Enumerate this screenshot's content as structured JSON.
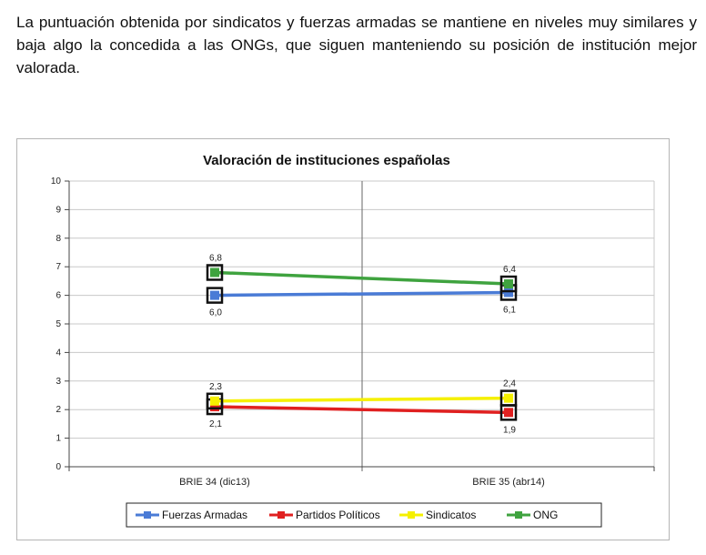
{
  "paragraph": "La puntuación obtenida por sindicatos y fuerzas armadas se mantiene en niveles muy similares y baja algo la concedida a las ONGs, que siguen manteniendo su posición de institución mejor valorada.",
  "chart_data": {
    "type": "line",
    "title": "Valoración de instituciones españolas",
    "categories": [
      "BRIE 34 (dic13)",
      "BRIE 35 (abr14)"
    ],
    "ylim": [
      0,
      10
    ],
    "yticks": [
      "0",
      "1",
      "2",
      "3",
      "4",
      "5",
      "6",
      "7",
      "8",
      "9",
      "10"
    ],
    "grid": true,
    "legend_position": "bottom",
    "series": [
      {
        "name": "Fuerzas Armadas",
        "values": [
          6.0,
          6.1
        ],
        "labels": [
          "6,0",
          "6,1"
        ],
        "label_side": [
          "below",
          "below"
        ],
        "color": "#4a7bd6"
      },
      {
        "name": "Partidos Políticos",
        "values": [
          2.1,
          1.9
        ],
        "labels": [
          "2,1",
          "1,9"
        ],
        "label_side": [
          "below",
          "below"
        ],
        "color": "#e02020"
      },
      {
        "name": "Sindicatos",
        "values": [
          2.3,
          2.4
        ],
        "labels": [
          "2,3",
          "2,4"
        ],
        "label_side": [
          "above",
          "above"
        ],
        "color": "#f5f000"
      },
      {
        "name": "ONG",
        "values": [
          6.8,
          6.4
        ],
        "labels": [
          "6,8",
          "6,4"
        ],
        "label_side": [
          "above",
          "above"
        ],
        "color": "#3fa33f"
      }
    ]
  }
}
